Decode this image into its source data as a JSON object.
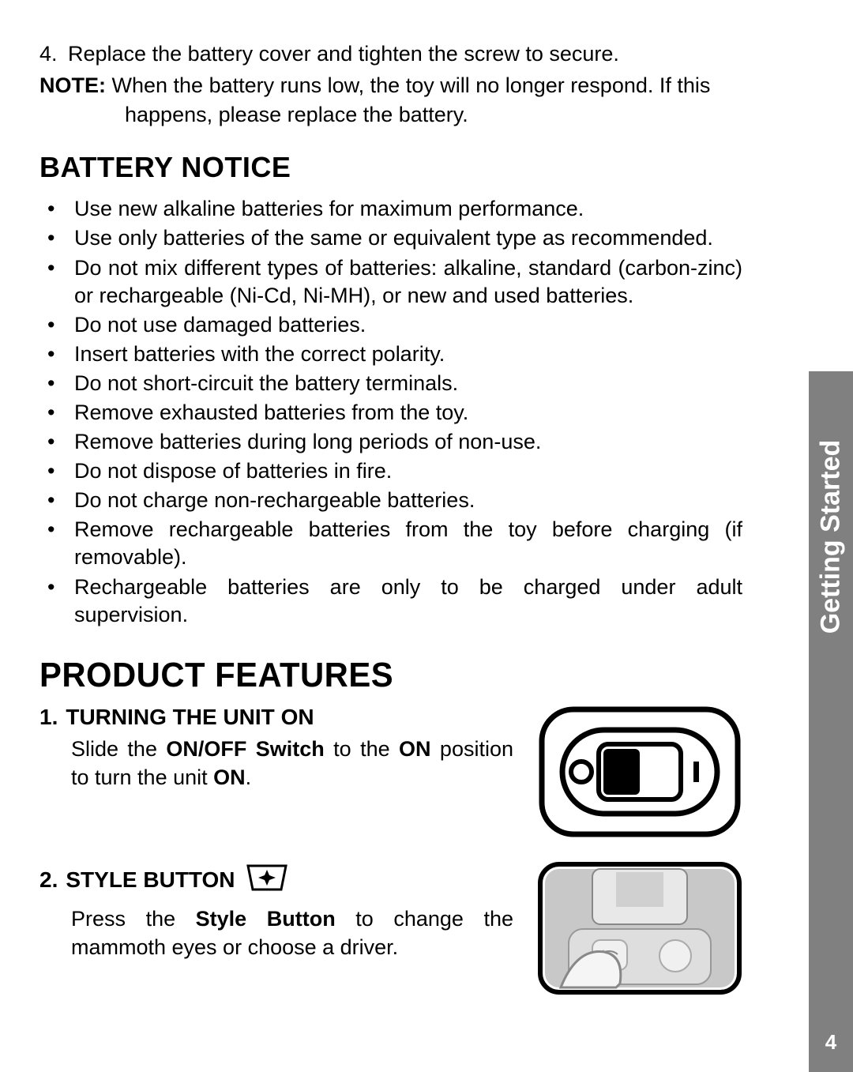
{
  "colors": {
    "text": "#000000",
    "background": "#ffffff",
    "tab_bg": "#808080",
    "tab_text": "#ffffff",
    "stroke": "#000000",
    "photo_gray": "#b0b0b0"
  },
  "typography": {
    "body_pt": 27,
    "h2_pt": 36,
    "h1_pt": 44,
    "feature_heading_pt": 28,
    "side_label_pt": 34,
    "page_num_pt": 26
  },
  "step4": {
    "num": "4.",
    "text": "Replace the battery cover and tighten the screw to secure."
  },
  "note": {
    "label": "NOTE:",
    "line1": " When the battery runs low, the toy will no longer respond. If this",
    "line2": "happens, please replace the battery."
  },
  "battery_notice": {
    "heading": "BATTERY NOTICE",
    "items": [
      "Use new alkaline batteries for maximum performance.",
      "Use only batteries of the same or equivalent type as recommended.",
      "Do not mix different types of batteries: alkaline, standard (carbon-zinc) or rechargeable (Ni-Cd, Ni-MH), or new and used batteries.",
      "Do not use damaged batteries.",
      "Insert batteries with the correct polarity.",
      "Do not short-circuit the battery terminals.",
      "Remove exhausted batteries from the toy.",
      "Remove batteries during long periods of non-use.",
      "Do not dispose of batteries in fire.",
      "Do not charge non-rechargeable batteries.",
      "Remove rechargeable batteries from the toy before charging (if removable).",
      "Rechargeable batteries are only to be charged under adult supervision."
    ]
  },
  "product_features": {
    "heading": "PRODUCT FEATURES",
    "feature1": {
      "num": "1.",
      "title": "TURNING THE UNIT ON",
      "body_pre": "Slide the ",
      "body_b1": "ON/OFF Switch",
      "body_mid": " to the ",
      "body_b2": "ON",
      "body_mid2": " position to turn the unit ",
      "body_b3": "ON",
      "body_end": "."
    },
    "feature2": {
      "num": "2.",
      "title": "STYLE BUTTON",
      "body_pre": "Press the ",
      "body_b1": "Style Button",
      "body_end": " to change the mammoth eyes or choose a driver."
    }
  },
  "side_tab": {
    "label": "Getting Started",
    "page_number": "4"
  },
  "switch_diagram": {
    "type": "diagram",
    "outer_radius": 36,
    "stroke_width": 6,
    "off_label": "O",
    "on_label": "I",
    "slider_position": "left",
    "slider_fill": "#000000"
  }
}
